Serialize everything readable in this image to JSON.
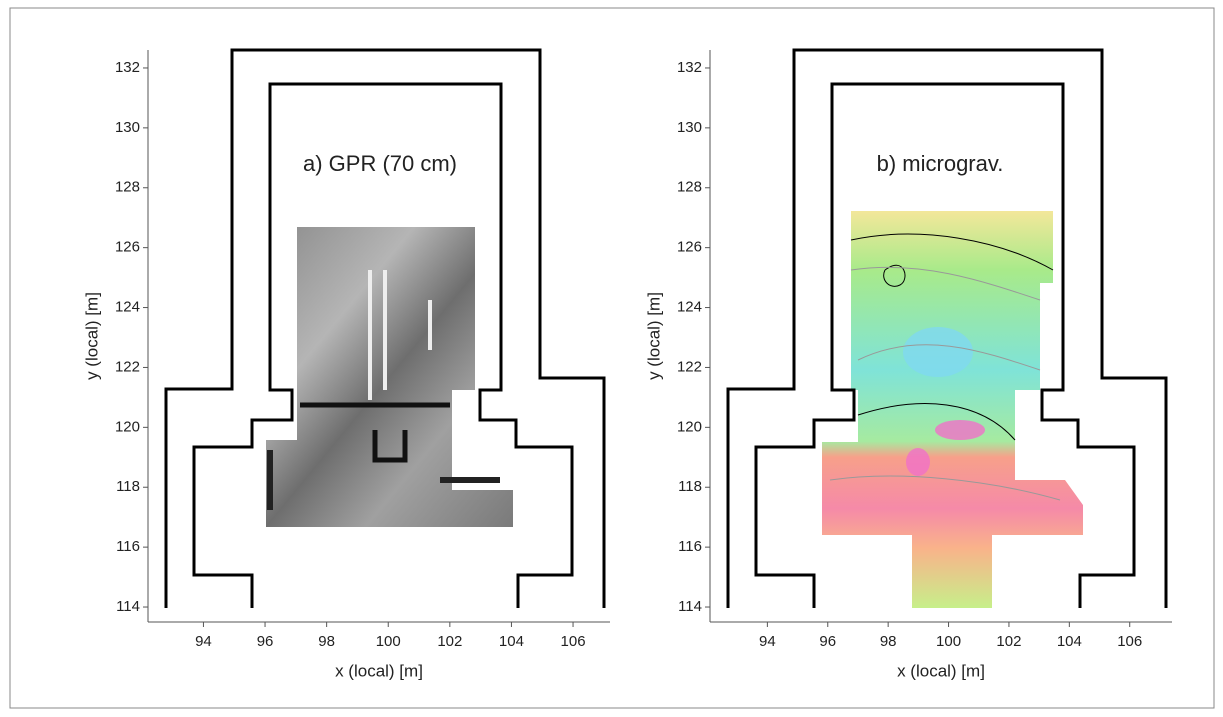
{
  "chart_data": [
    {
      "type": "image",
      "title": "a)  GPR (70 cm)",
      "x_label": "x (local) [m]",
      "y_label": "y (local) [m]",
      "xlim": [
        92.2,
        107.2
      ],
      "ylim": [
        113.5,
        132.6
      ],
      "xticks": [
        94,
        96,
        98,
        100,
        102,
        104,
        106
      ],
      "yticks": [
        114,
        116,
        118,
        120,
        122,
        124,
        126,
        128,
        130,
        132
      ]
    },
    {
      "type": "image",
      "title": "b) micrograv.",
      "x_label": "x (local) [m]",
      "y_label": "y (local) [m]",
      "xlim": [
        92.1,
        107.4
      ],
      "ylim": [
        113.5,
        132.6
      ],
      "xticks": [
        94,
        96,
        98,
        100,
        102,
        104,
        106
      ],
      "yticks": [
        114,
        116,
        118,
        120,
        122,
        124,
        126,
        128,
        130,
        132
      ]
    }
  ]
}
